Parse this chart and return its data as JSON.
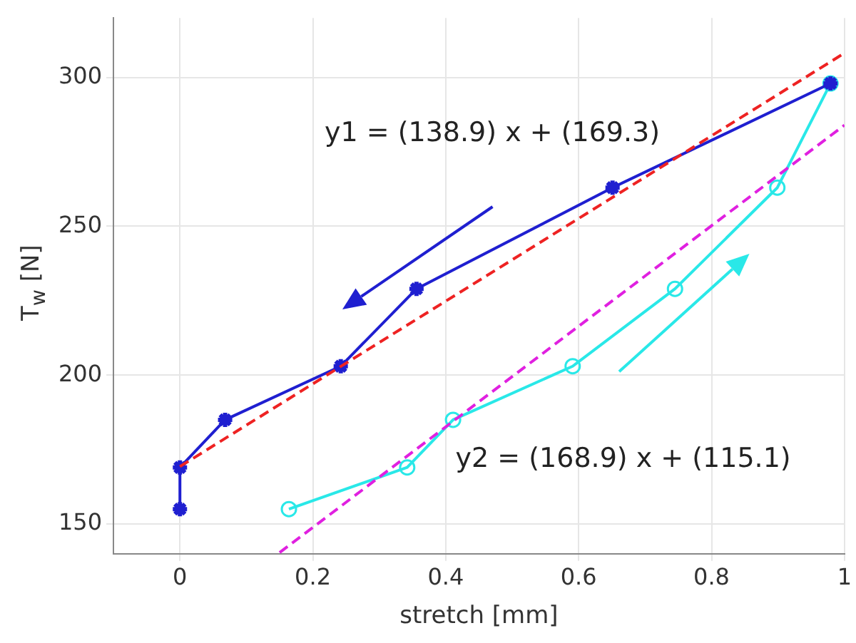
{
  "chart_data": {
    "type": "line",
    "xlabel": "stretch [mm]",
    "ylabel": "T$_{w}$ [N]",
    "xlim": [
      -0.1,
      1
    ],
    "xticks": [
      0,
      0.2,
      0.4,
      0.6,
      0.8,
      1
    ],
    "ylim": [
      140,
      320
    ],
    "yticks": [
      150,
      200,
      250,
      300
    ],
    "grid": true,
    "legend": false,
    "series": [
      {
        "color": "#1f1fd0",
        "marker": "cross",
        "line_style": "solid",
        "x": [
          0,
          0,
          0.068,
          0.242,
          0.356,
          0.651,
          0.979
        ],
        "values": [
          155,
          169,
          185,
          203,
          229,
          263,
          298
        ]
      },
      {
        "color": "#29e8e8",
        "marker": "circle",
        "line_style": "solid",
        "x": [
          0.164,
          0.342,
          0.411,
          0.591,
          0.745,
          0.899,
          0.979
        ],
        "values": [
          155,
          169,
          185,
          203,
          229,
          263,
          298
        ]
      },
      {
        "color": "#ee2222",
        "marker": "none",
        "line_style": "dashed",
        "x": [
          0,
          1
        ],
        "values": [
          169.3,
          308.2
        ]
      },
      {
        "color": "#e020e0",
        "marker": "none",
        "line_style": "dashed",
        "x": [
          0.15,
          1
        ],
        "values": [
          140.4,
          284
        ]
      }
    ],
    "annotations": [
      "y1 = (138.9) x + (169.3)",
      "y2 = (168.9) x + (115.1)"
    ]
  }
}
